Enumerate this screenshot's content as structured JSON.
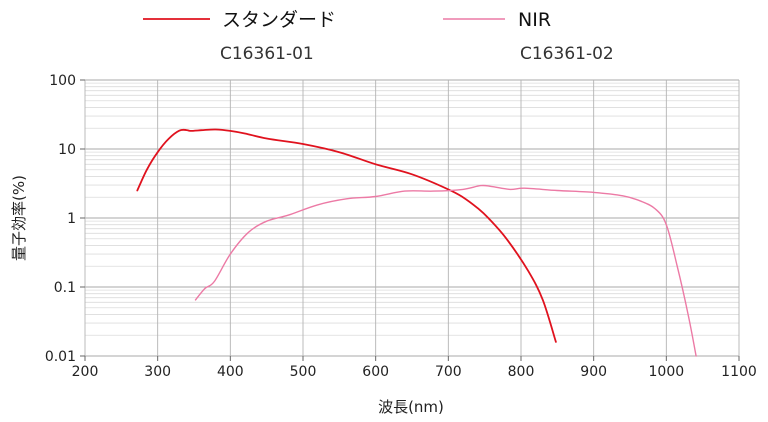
{
  "chart_data": {
    "type": "line",
    "title": "",
    "xlabel": "波長(nm)",
    "ylabel": "量子効率(%)",
    "xlim": [
      200,
      1100
    ],
    "ylim": [
      0.01,
      100
    ],
    "yscale": "log",
    "grid": true,
    "legend_position": "top",
    "x_ticks": [
      "200",
      "300",
      "400",
      "500",
      "600",
      "700",
      "800",
      "900",
      "1000",
      "1100"
    ],
    "y_ticks": [
      "0.01",
      "0.1",
      "1",
      "10",
      "100"
    ],
    "series": [
      {
        "name": "スタンダード",
        "model": "C16361-01",
        "color": "#e0121e",
        "points": [
          [
            272,
            2.5
          ],
          [
            285,
            5
          ],
          [
            300,
            9
          ],
          [
            315,
            14
          ],
          [
            330,
            18.5
          ],
          [
            340,
            18.8
          ],
          [
            345,
            18.3
          ],
          [
            360,
            18.7
          ],
          [
            380,
            19.2
          ],
          [
            400,
            18.3
          ],
          [
            420,
            16.8
          ],
          [
            450,
            14.2
          ],
          [
            500,
            11.8
          ],
          [
            550,
            9.0
          ],
          [
            600,
            6.0
          ],
          [
            650,
            4.3
          ],
          [
            700,
            2.6
          ],
          [
            720,
            2.0
          ],
          [
            740,
            1.4
          ],
          [
            755,
            1.0
          ],
          [
            780,
            0.5
          ],
          [
            810,
            0.17
          ],
          [
            830,
            0.065
          ],
          [
            848,
            0.016
          ]
        ]
      },
      {
        "name": "NIR",
        "model": "C16361-02",
        "color": "#ec7aa5",
        "points": [
          [
            352,
            0.065
          ],
          [
            365,
            0.095
          ],
          [
            378,
            0.12
          ],
          [
            400,
            0.3
          ],
          [
            425,
            0.62
          ],
          [
            450,
            0.9
          ],
          [
            480,
            1.1
          ],
          [
            520,
            1.55
          ],
          [
            560,
            1.9
          ],
          [
            600,
            2.05
          ],
          [
            640,
            2.45
          ],
          [
            680,
            2.45
          ],
          [
            720,
            2.6
          ],
          [
            745,
            2.95
          ],
          [
            760,
            2.85
          ],
          [
            785,
            2.6
          ],
          [
            805,
            2.7
          ],
          [
            850,
            2.5
          ],
          [
            900,
            2.35
          ],
          [
            940,
            2.1
          ],
          [
            965,
            1.75
          ],
          [
            985,
            1.35
          ],
          [
            1000,
            0.8
          ],
          [
            1015,
            0.2
          ],
          [
            1030,
            0.04
          ],
          [
            1041,
            0.01
          ]
        ]
      }
    ]
  }
}
